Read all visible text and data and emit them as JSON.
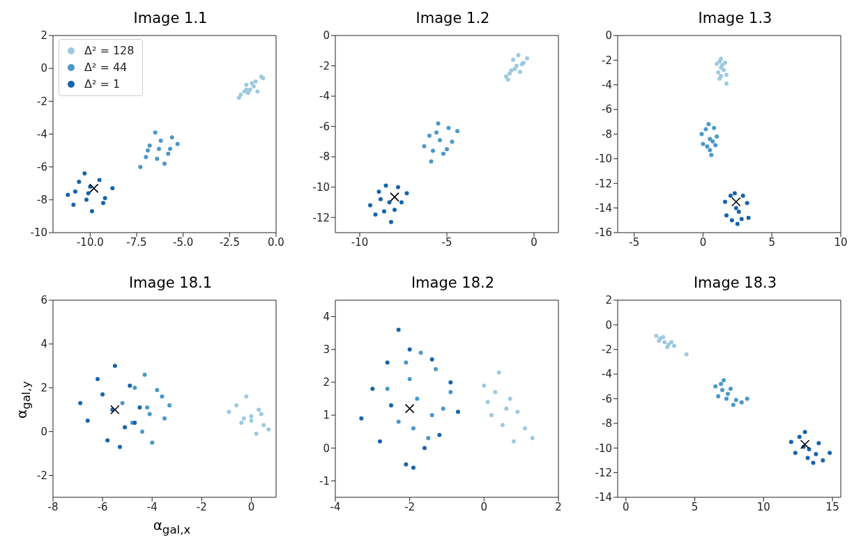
{
  "chart_data": [
    {
      "type": "scatter",
      "title": "Image 1.1",
      "xlim": [
        -12,
        0
      ],
      "xticks": [
        {
          "value": -10,
          "label": "-10.0"
        },
        {
          "value": -7.5,
          "label": "-7.5"
        },
        {
          "value": -5,
          "label": "-5.0"
        },
        {
          "value": -2.5,
          "label": "-2.5"
        },
        {
          "value": 0,
          "label": "0.0"
        }
      ],
      "ylim": [
        -10,
        2
      ],
      "yticks": [
        -10,
        -8,
        -6,
        -4,
        -2,
        0,
        2
      ],
      "legend": "top left",
      "series": [
        {
          "name": "Δ² = 128",
          "color": "#9ecae1",
          "marker": "circle",
          "x": [
            -1.6,
            -2.0,
            -1.9,
            -0.7,
            -0.8,
            -1.6,
            -1.0,
            -1.5,
            -1.1,
            -1.3,
            -1.4,
            -1.2,
            -1.7
          ],
          "values": [
            -1.3,
            -1.8,
            -1.6,
            -0.6,
            -0.5,
            -1.0,
            -1.4,
            -1.5,
            -0.8,
            -0.9,
            -1.3,
            -1.1,
            -1.4
          ]
        },
        {
          "name": "Δ² = 44",
          "color": "#4a98c9",
          "marker": "circle",
          "x": [
            -6.3,
            -7.3,
            -7.0,
            -5.3,
            -5.6,
            -6.5,
            -6.0,
            -6.8,
            -5.8,
            -6.2,
            -6.9,
            -5.7,
            -6.4
          ],
          "values": [
            -4.9,
            -6.0,
            -5.4,
            -4.6,
            -4.2,
            -3.9,
            -5.8,
            -4.7,
            -5.2,
            -4.4,
            -5.0,
            -4.9,
            -5.5
          ]
        },
        {
          "name": "Δ² = 1",
          "color": "#1764ab",
          "marker": "circle",
          "x": [
            -10.1,
            -11.2,
            -10.9,
            -8.8,
            -9.2,
            -10.3,
            -9.9,
            -10.6,
            -9.5,
            -10.0,
            -10.8,
            -9.3,
            -10.2
          ],
          "values": [
            -7.6,
            -7.7,
            -8.3,
            -7.3,
            -7.9,
            -6.4,
            -8.7,
            -6.9,
            -6.8,
            -7.2,
            -7.5,
            -8.2,
            -8.0
          ]
        },
        {
          "color": "#000000",
          "marker": "cross",
          "x": [
            -9.8
          ],
          "values": [
            -7.3
          ]
        }
      ]
    },
    {
      "type": "scatter",
      "title": "Image 1.2",
      "xlim": [
        -11.4,
        1.4
      ],
      "xticks": [
        -10,
        -5,
        0
      ],
      "ylim": [
        -13,
        0
      ],
      "yticks": [
        -12,
        -10,
        -8,
        -6,
        -4,
        -2,
        0
      ],
      "series": [
        {
          "color": "#9ecae1",
          "marker": "circle",
          "x": [
            -1.0,
            -1.6,
            -1.3,
            -0.4,
            -0.6,
            -1.2,
            -0.8,
            -0.9,
            -1.1,
            -0.7,
            -1.4,
            -1.5
          ],
          "values": [
            -2.0,
            -2.7,
            -2.3,
            -1.5,
            -1.8,
            -1.6,
            -2.4,
            -1.3,
            -2.2,
            -1.9,
            -2.5,
            -2.9
          ]
        },
        {
          "color": "#4a98c9",
          "marker": "circle",
          "x": [
            -5.4,
            -6.3,
            -6.0,
            -4.4,
            -4.7,
            -5.5,
            -5.2,
            -5.9,
            -4.9,
            -5.6,
            -5.0,
            -5.8
          ],
          "values": [
            -6.9,
            -7.3,
            -6.6,
            -6.3,
            -7.0,
            -5.8,
            -7.8,
            -8.3,
            -6.1,
            -6.4,
            -7.5,
            -7.6
          ]
        },
        {
          "color": "#1764ab",
          "marker": "circle",
          "x": [
            -8.3,
            -9.4,
            -9.1,
            -7.3,
            -7.6,
            -8.5,
            -8.2,
            -8.9,
            -7.8,
            -8.6,
            -8.0,
            -8.8
          ],
          "values": [
            -11.0,
            -11.2,
            -11.8,
            -10.4,
            -11.0,
            -9.9,
            -12.3,
            -10.3,
            -10.0,
            -11.6,
            -11.5,
            -10.8
          ]
        },
        {
          "color": "#000000",
          "marker": "cross",
          "x": [
            -8.0
          ],
          "values": [
            -10.65
          ]
        }
      ]
    },
    {
      "type": "scatter",
      "title": "Image 1.3",
      "xlim": [
        -6.2,
        10
      ],
      "xticks": [
        -5,
        0,
        5,
        10
      ],
      "ylim": [
        -16,
        0
      ],
      "yticks": [
        -16,
        -14,
        -12,
        -10,
        -8,
        -6,
        -4,
        -2,
        0
      ],
      "series": [
        {
          "color": "#9ecae1",
          "marker": "circle",
          "x": [
            1.3,
            1.0,
            1.1,
            1.6,
            1.7,
            1.3,
            1.2,
            1.5,
            1.4,
            1.3,
            1.2,
            1.7
          ],
          "values": [
            -2.6,
            -2.3,
            -3.0,
            -2.2,
            -3.2,
            -1.9,
            -3.5,
            -2.8,
            -2.4,
            -3.3,
            -2.1,
            -3.9
          ]
        },
        {
          "color": "#4a98c9",
          "marker": "circle",
          "x": [
            0.5,
            -0.1,
            0.0,
            1.0,
            0.9,
            0.4,
            0.6,
            0.2,
            0.8,
            0.5,
            0.3,
            0.7
          ],
          "values": [
            -8.4,
            -8.0,
            -8.8,
            -8.2,
            -8.9,
            -7.2,
            -9.7,
            -7.6,
            -7.5,
            -9.3,
            -9.0,
            -8.6
          ]
        },
        {
          "color": "#1764ab",
          "marker": "circle",
          "x": [
            2.4,
            1.6,
            1.7,
            3.2,
            3.3,
            2.3,
            2.5,
            2.0,
            2.9,
            2.1,
            2.8,
            2.6
          ],
          "values": [
            -14.0,
            -13.5,
            -14.6,
            -13.6,
            -14.8,
            -12.8,
            -15.3,
            -13.0,
            -13.0,
            -15.0,
            -14.9,
            -14.3
          ]
        },
        {
          "color": "#000000",
          "marker": "cross",
          "x": [
            2.4
          ],
          "values": [
            -13.5
          ]
        }
      ]
    },
    {
      "type": "scatter",
      "title": "Image 18.1",
      "xlabel": "α$_{gal,x}$",
      "ylabel": "α$_{gal,y}$",
      "xlim": [
        -8,
        1
      ],
      "xticks": [
        -8,
        -6,
        -4,
        -2,
        0
      ],
      "ylim": [
        -3,
        6
      ],
      "yticks": [
        -2,
        0,
        2,
        4,
        6
      ],
      "series": [
        {
          "color": "#9ecae1",
          "marker": "circle",
          "x": [
            0.0,
            -0.9,
            -0.6,
            0.7,
            0.5,
            -0.2,
            0.2,
            -0.4,
            0.3,
            0.0,
            -0.3,
            0.4
          ],
          "values": [
            0.7,
            0.9,
            1.2,
            0.1,
            0.3,
            1.6,
            -0.1,
            0.4,
            1.0,
            0.5,
            0.6,
            0.8
          ]
        },
        {
          "color": "#4a98c9",
          "marker": "circle",
          "x": [
            -4.2,
            -5.2,
            -4.8,
            -3.3,
            -3.5,
            -4.3,
            -4.0,
            -4.7,
            -3.8,
            -4.4,
            -3.6,
            -4.1
          ],
          "values": [
            1.1,
            1.3,
            0.4,
            1.2,
            0.6,
            2.6,
            -0.5,
            2.0,
            1.9,
            0.0,
            1.6,
            0.8
          ]
        },
        {
          "color": "#1764ab",
          "marker": "circle",
          "x": [
            -5.6,
            -6.9,
            -6.6,
            -4.5,
            -4.7,
            -5.5,
            -5.3,
            -6.2,
            -4.9,
            -5.8,
            -6.0,
            -5.1
          ],
          "values": [
            1.0,
            1.3,
            0.5,
            1.1,
            0.4,
            3.0,
            -0.7,
            2.4,
            2.1,
            -0.4,
            1.7,
            0.2
          ]
        },
        {
          "color": "#000000",
          "marker": "cross",
          "x": [
            -5.5
          ],
          "values": [
            1.0
          ]
        }
      ]
    },
    {
      "type": "scatter",
      "title": "Image 18.2",
      "xlim": [
        -4,
        2
      ],
      "xticks": [
        -4,
        -2,
        0,
        2
      ],
      "ylim": [
        -1.5,
        4.5
      ],
      "yticks": [
        -1,
        0,
        1,
        2,
        3,
        4
      ],
      "series": [
        {
          "color": "#9ecae1",
          "marker": "circle",
          "x": [
            0.6,
            0.0,
            0.1,
            1.3,
            1.1,
            0.4,
            0.8,
            0.3,
            0.9,
            0.5,
            0.2,
            0.7
          ],
          "values": [
            1.2,
            1.9,
            1.4,
            0.3,
            0.6,
            2.3,
            0.2,
            1.7,
            1.1,
            0.7,
            1.0,
            1.5
          ]
        },
        {
          "color": "#4a98c9",
          "marker": "circle",
          "x": [
            -1.8,
            -2.6,
            -2.3,
            -0.9,
            -1.1,
            -1.7,
            -1.5,
            -2.1,
            -1.3,
            -1.9,
            -1.4,
            -2.0
          ],
          "values": [
            1.5,
            1.8,
            0.8,
            1.7,
            1.2,
            2.9,
            0.3,
            2.6,
            2.4,
            0.6,
            1.0,
            2.1
          ]
        },
        {
          "color": "#1764ab",
          "marker": "circle",
          "x": [
            -2.5,
            -3.3,
            -3.0,
            -0.7,
            -0.9,
            -2.3,
            -1.9,
            -2.6,
            -1.4,
            -2.1,
            -1.6,
            -2.8,
            -1.2,
            -2.0
          ],
          "values": [
            1.3,
            0.9,
            1.8,
            1.1,
            2.0,
            3.6,
            -0.6,
            2.6,
            2.7,
            -0.5,
            0.0,
            0.2,
            0.4,
            3.0
          ]
        },
        {
          "color": "#000000",
          "marker": "cross",
          "x": [
            -2.0
          ],
          "values": [
            1.2
          ]
        }
      ]
    },
    {
      "type": "scatter",
      "title": "Image 18.3",
      "xlim": [
        -0.6,
        15.6
      ],
      "xticks": [
        0,
        5,
        10,
        15
      ],
      "ylim": [
        -14,
        2
      ],
      "yticks": [
        -14,
        -12,
        -10,
        -8,
        -6,
        -4,
        -2,
        0,
        2
      ],
      "series": [
        {
          "color": "#9ecae1",
          "marker": "circle",
          "x": [
            2.8,
            2.2,
            2.4,
            3.5,
            4.4,
            2.7,
            3.0,
            3.3,
            2.5,
            3.1
          ],
          "values": [
            -1.4,
            -0.9,
            -1.3,
            -1.7,
            -2.4,
            -1.0,
            -1.8,
            -1.4,
            -1.1,
            -1.6
          ]
        },
        {
          "color": "#4a98c9",
          "marker": "circle",
          "x": [
            7.4,
            6.5,
            6.7,
            8.4,
            8.8,
            7.1,
            7.8,
            7.0,
            7.6,
            8.0,
            6.9,
            7.3
          ],
          "values": [
            -5.6,
            -5.0,
            -5.8,
            -6.3,
            -6.0,
            -4.5,
            -6.5,
            -5.3,
            -5.2,
            -6.1,
            -4.8,
            -6.0
          ]
        },
        {
          "color": "#1764ab",
          "marker": "circle",
          "x": [
            13.3,
            12.0,
            12.3,
            14.8,
            14.3,
            13.0,
            13.6,
            12.6,
            14.0,
            13.2,
            12.9,
            13.8
          ],
          "values": [
            -10.1,
            -9.5,
            -10.4,
            -10.4,
            -11.0,
            -8.7,
            -11.2,
            -9.1,
            -9.6,
            -10.8,
            -9.9,
            -10.5
          ]
        },
        {
          "color": "#000000",
          "marker": "cross",
          "x": [
            13.0
          ],
          "values": [
            -9.7
          ]
        }
      ]
    }
  ]
}
